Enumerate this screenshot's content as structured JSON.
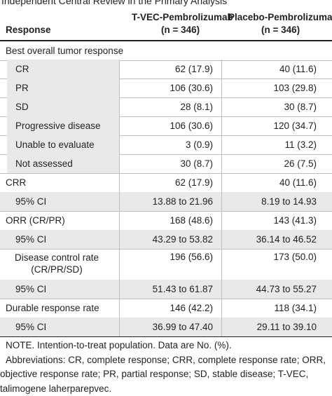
{
  "caption": "Independent Central Review in the Primary Analysis",
  "header": {
    "response": "Response",
    "col1_name": "T-VEC-Pembrolizumab",
    "col1_n": "(n = 346)",
    "col2_name": "Placebo-Pembrolizumab",
    "col2_n": "(n = 346)"
  },
  "rows": [
    {
      "label": "Best overall tumor response",
      "v1": "",
      "v2": ""
    },
    {
      "label": "CR",
      "v1": "62 (17.9)",
      "v2": "40 (11.6)"
    },
    {
      "label": "PR",
      "v1": "106 (30.6)",
      "v2": "103 (29.8)"
    },
    {
      "label": "SD",
      "v1": "28 (8.1)",
      "v2": "30 (8.7)"
    },
    {
      "label": "Progressive disease",
      "v1": "106 (30.6)",
      "v2": "120 (34.7)"
    },
    {
      "label": "Unable to evaluate",
      "v1": "3 (0.9)",
      "v2": "11 (3.2)"
    },
    {
      "label": "Not assessed",
      "v1": "30 (8.7)",
      "v2": "26 (7.5)"
    },
    {
      "label": "CRR",
      "v1": "62 (17.9)",
      "v2": "40 (11.6)"
    },
    {
      "label": "95% CI",
      "v1": "13.88 to 21.96",
      "v2": "8.19 to 14.93"
    },
    {
      "label": "ORR (CR/PR)",
      "v1": "168 (48.6)",
      "v2": "143 (41.3)"
    },
    {
      "label": "95% CI",
      "v1": "43.29 to 53.82",
      "v2": "36.14 to 46.52"
    },
    {
      "label": "Disease control rate",
      "label2": "(CR/PR/SD)",
      "v1": "196 (56.6)",
      "v2": "173 (50.0)"
    },
    {
      "label": "95% CI",
      "v1": "51.43 to 61.87",
      "v2": "44.73 to 55.27"
    },
    {
      "label": "Durable response rate",
      "v1": "146 (42.2)",
      "v2": "118 (34.1)"
    },
    {
      "label": "95% CI",
      "v1": "36.99 to 47.40",
      "v2": "29.11 to 39.10"
    }
  ],
  "notes": {
    "line1": "NOTE. Intention-to-treat population. Data are No. (%).",
    "line2": "Abbreviations: CR, complete response; CRR, complete response rate; ORR,",
    "line3": "objective response rate; PR, partial response; SD, stable disease; T-VEC,",
    "line4": "talimogene laherparepvec."
  }
}
